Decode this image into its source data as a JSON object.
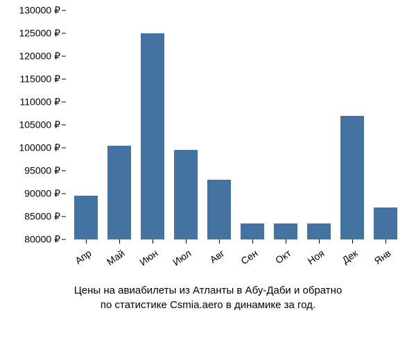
{
  "chart": {
    "type": "bar",
    "categories": [
      "Апр",
      "Май",
      "Июн",
      "Июл",
      "Авг",
      "Сен",
      "Окт",
      "Ноя",
      "Дек",
      "Янв"
    ],
    "values": [
      89500,
      100500,
      125000,
      99500,
      93000,
      83500,
      83500,
      83500,
      107000,
      87000
    ],
    "bar_color": "#4573a1",
    "background_color": "#ffffff",
    "y_min": 80000,
    "y_max": 130000,
    "y_tick_step": 5000,
    "y_ticks": [
      "80000 ₽",
      "85000 ₽",
      "90000 ₽",
      "95000 ₽",
      "100000 ₽",
      "105000 ₽",
      "110000 ₽",
      "115000 ₽",
      "120000 ₽",
      "125000 ₽",
      "130000 ₽"
    ],
    "bar_width_ratio": 0.7,
    "tick_fontsize": 14,
    "caption_fontsize": 15,
    "x_label_rotation": -35
  },
  "caption": {
    "line1": "Цены на авиабилеты из Атланты в Абу-Даби и обратно",
    "line2": "по статистике Csmia.aero в динамике за год."
  }
}
